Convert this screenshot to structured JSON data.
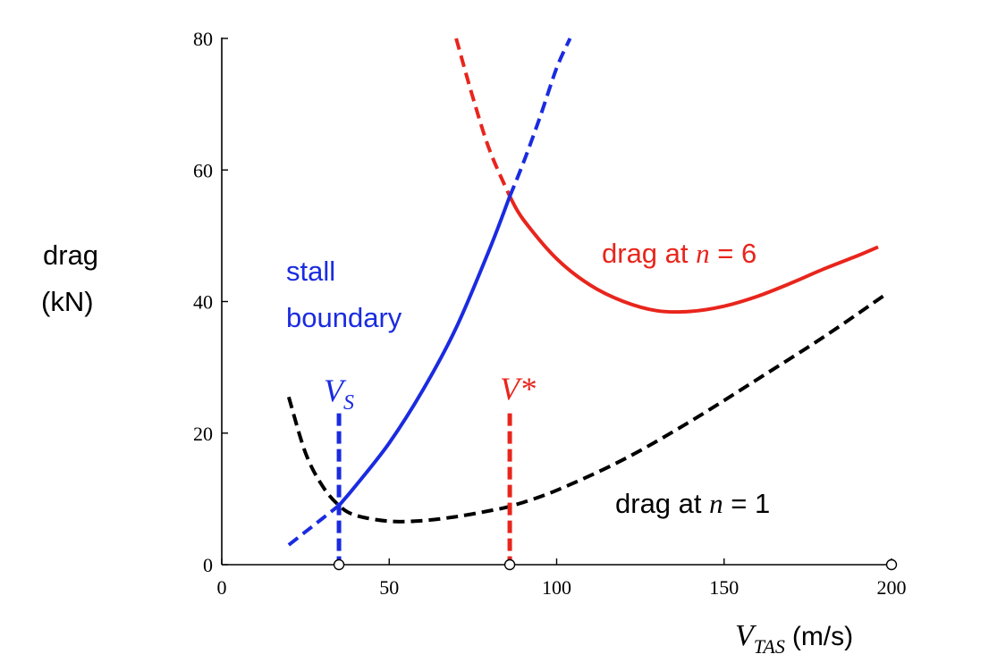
{
  "chart_data": {
    "type": "line",
    "xlabel": {
      "symbol": "V",
      "subscript": "TAS",
      "unit": "(m/s)"
    },
    "ylabel": [
      "drag",
      "(kN)"
    ],
    "xlim": [
      0,
      200
    ],
    "ylim": [
      0,
      80
    ],
    "x_ticks": [
      "0",
      "50",
      "100",
      "150",
      "200"
    ],
    "y_ticks": [
      "0",
      "20",
      "40",
      "60",
      "80"
    ],
    "grid": false,
    "series": [
      {
        "name": "drag at n = 1",
        "color": "#000000",
        "style": "dashed",
        "points": [
          [
            20,
            25.5
          ],
          [
            25,
            17
          ],
          [
            30,
            12
          ],
          [
            35,
            9
          ],
          [
            40,
            7.5
          ],
          [
            50,
            6.6
          ],
          [
            60,
            6.7
          ],
          [
            70,
            7.3
          ],
          [
            80,
            8.2
          ],
          [
            87,
            9
          ],
          [
            100,
            11.3
          ],
          [
            120,
            16
          ],
          [
            140,
            21.8
          ],
          [
            160,
            28.2
          ],
          [
            180,
            34.7
          ],
          [
            198,
            41
          ]
        ]
      },
      {
        "name": "drag at n = 6",
        "color": "#e8251c",
        "style": "dashed-solid",
        "points": [
          [
            70,
            80
          ],
          [
            75,
            71
          ],
          [
            80,
            63
          ],
          [
            86,
            56
          ],
          [
            90,
            52.5
          ],
          [
            100,
            46.5
          ],
          [
            110,
            42.5
          ],
          [
            120,
            40
          ],
          [
            130,
            38.6
          ],
          [
            140,
            38.5
          ],
          [
            150,
            39.3
          ],
          [
            160,
            40.8
          ],
          [
            170,
            42.8
          ],
          [
            180,
            45
          ],
          [
            190,
            47
          ],
          [
            196,
            48.3
          ]
        ]
      },
      {
        "name": "stall boundary",
        "color": "#1a2be0",
        "style": "dashed-solid",
        "points": [
          [
            20,
            3
          ],
          [
            25,
            5
          ],
          [
            30,
            7
          ],
          [
            35,
            9
          ],
          [
            40,
            12
          ],
          [
            50,
            18.5
          ],
          [
            60,
            26.5
          ],
          [
            70,
            36
          ],
          [
            80,
            48
          ],
          [
            86,
            56
          ],
          [
            90,
            61
          ],
          [
            95,
            68
          ],
          [
            100,
            75.5
          ],
          [
            104,
            80
          ]
        ]
      }
    ],
    "markers": [
      {
        "label": "V",
        "subscript": "S",
        "x": 35,
        "y_top": 23,
        "color": "#1a2be0"
      },
      {
        "label": "V*",
        "subscript": "",
        "x": 86,
        "y_top": 23,
        "color": "#e8251c"
      }
    ],
    "axis_points_x": [
      35,
      86,
      200
    ],
    "annotations": {
      "stall_line1": "stall",
      "stall_line2": "boundary",
      "n6_prefix": "drag at ",
      "n6_var": "n",
      "n6_suffix": " = 6",
      "n1_prefix": "drag at ",
      "n1_var": "n",
      "n1_suffix": " = 1"
    }
  }
}
